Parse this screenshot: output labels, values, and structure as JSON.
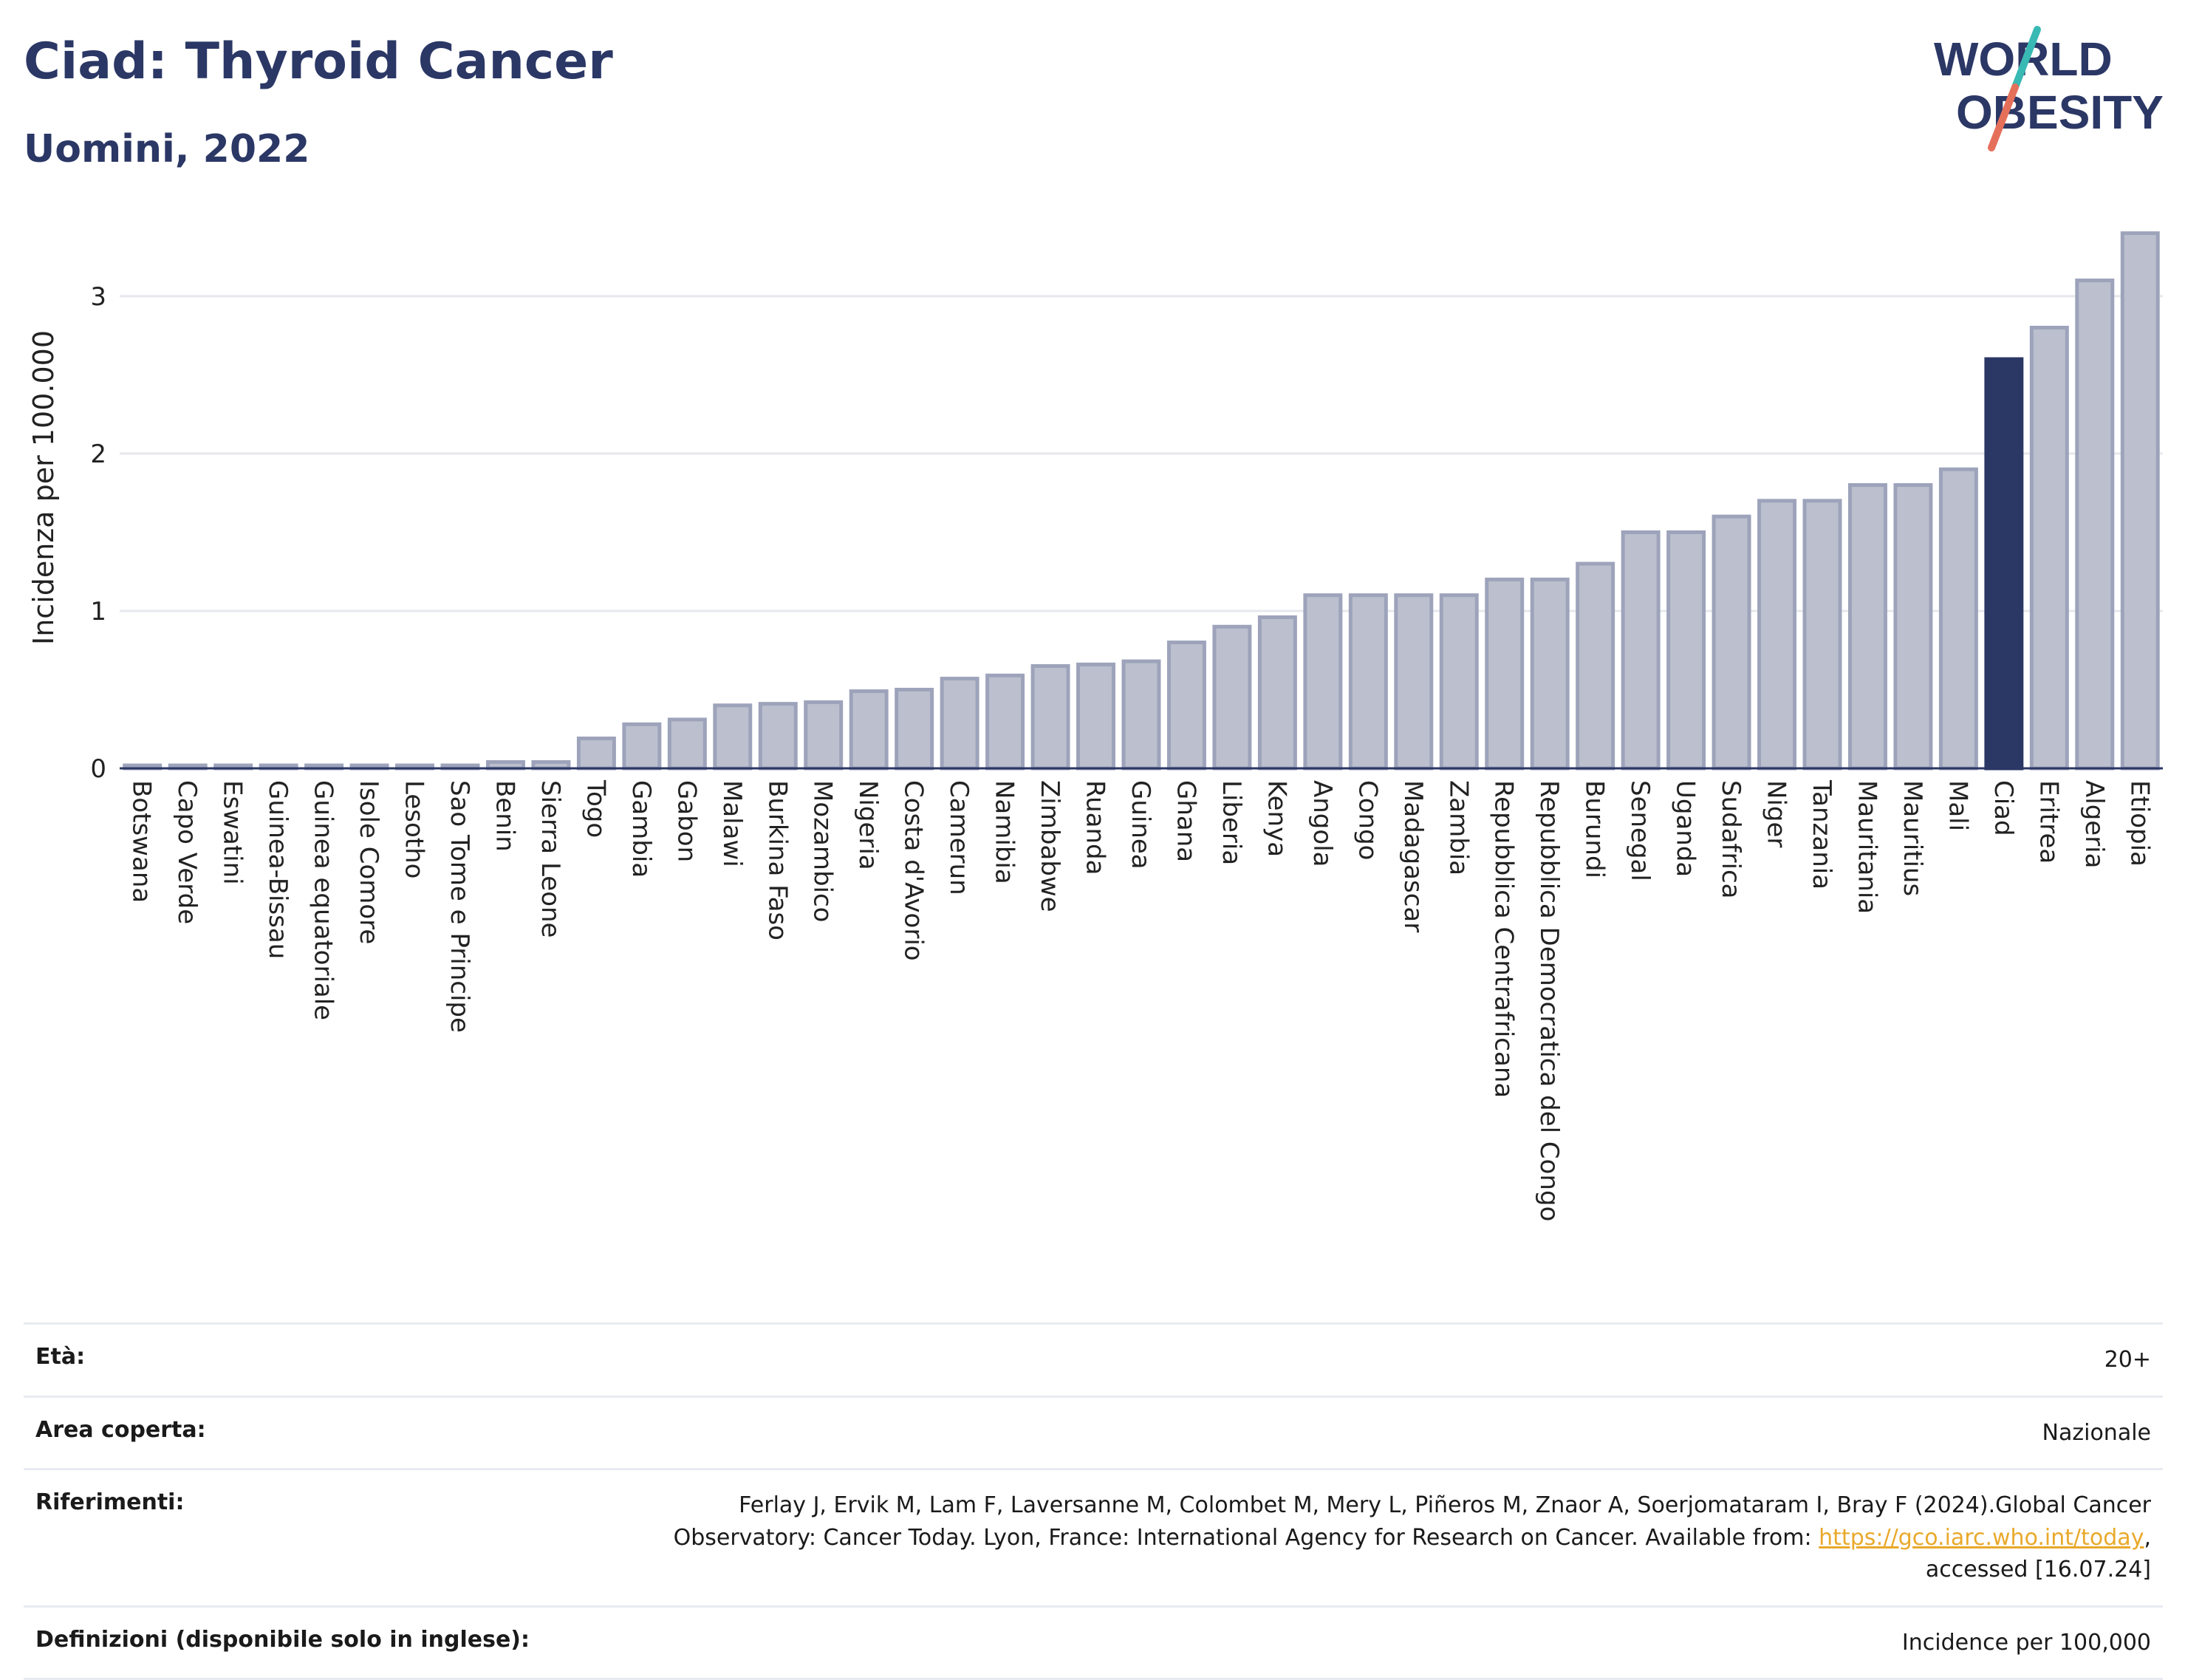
{
  "header": {
    "title": "Ciad: Thyroid Cancer",
    "subtitle": "Uomini, 2022"
  },
  "logo": {
    "line1": "WORLD",
    "line2": "OBESITY"
  },
  "colors": {
    "bar": "#bcc0ce",
    "bar_stroke": "#9da3ba",
    "highlight": "#2b3765",
    "brand": "#2b3765",
    "slash_teal": "#39b9b3",
    "slash_red": "#e5705a",
    "link": "#e9a92b"
  },
  "chart_data": {
    "type": "bar",
    "title": "Ciad: Thyroid Cancer",
    "subtitle": "Uomini, 2022",
    "ylabel": "Incidenza per 100.000",
    "ylim": [
      0,
      3.45
    ],
    "yticks": [
      0,
      1,
      2,
      3
    ],
    "grid": true,
    "highlight": "Ciad",
    "categories": [
      "Botswana",
      "Capo Verde",
      "Eswatini",
      "Guinea-Bissau",
      "Guinea equatoriale",
      "Isole Comore",
      "Lesotho",
      "Sao Tome e Principe",
      "Benin",
      "Sierra Leone",
      "Togo",
      "Gambia",
      "Gabon",
      "Malawi",
      "Burkina Faso",
      "Mozambico",
      "Nigeria",
      "Costa d'Avorio",
      "Camerun",
      "Namibia",
      "Zimbabwe",
      "Ruanda",
      "Guinea",
      "Ghana",
      "Liberia",
      "Kenya",
      "Angola",
      "Congo",
      "Madagascar",
      "Zambia",
      "Repubblica Centrafricana",
      "Repubblica Democratica del Congo",
      "Burundi",
      "Senegal",
      "Uganda",
      "Sudafrica",
      "Niger",
      "Tanzania",
      "Mauritania",
      "Mauritius",
      "Mali",
      "Ciad",
      "Eritrea",
      "Algeria",
      "Etiopia"
    ],
    "values": [
      0.01,
      0.01,
      0.01,
      0.01,
      0.01,
      0.01,
      0.01,
      0.01,
      0.04,
      0.04,
      0.19,
      0.28,
      0.31,
      0.4,
      0.41,
      0.42,
      0.49,
      0.5,
      0.57,
      0.59,
      0.65,
      0.66,
      0.68,
      0.8,
      0.9,
      0.96,
      1.1,
      1.1,
      1.1,
      1.1,
      1.2,
      1.2,
      1.3,
      1.5,
      1.5,
      1.6,
      1.7,
      1.7,
      1.8,
      1.8,
      1.9,
      2.6,
      2.8,
      3.1,
      3.4
    ]
  },
  "info": {
    "age_label": "Età:",
    "age_value": "20+",
    "area_label": "Area coperta:",
    "area_value": "Nazionale",
    "refs_label": "Riferimenti:",
    "refs_text1": "Ferlay J, Ervik M, Lam F, Laversanne M, Colombet M, Mery L, Piñeros M, Znaor A, Soerjomataram I, Bray F (2024).Global Cancer Observatory: Cancer Today. Lyon, France: International Agency for Research on Cancer. Available from: ",
    "refs_link": "https://gco.iarc.who.int/today",
    "refs_text2": ", accessed [16.07.24]",
    "defs_label": "Definizioni (disponibile solo in inglese):",
    "defs_value": "Incidence per 100,000"
  }
}
